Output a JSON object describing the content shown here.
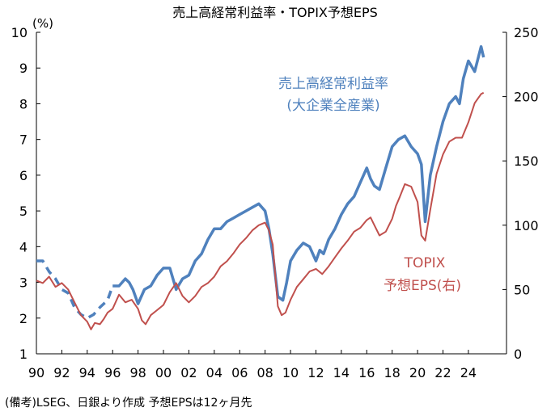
{
  "chart_data": {
    "type": "line",
    "title": "売上高経常利益率・TOPIX予想EPS",
    "left_axis": {
      "unit_label": "(%)",
      "ylim": [
        1,
        10
      ],
      "ticks": [
        "1",
        "2",
        "3",
        "4",
        "5",
        "6",
        "7",
        "8",
        "9",
        "10"
      ]
    },
    "right_axis": {
      "ylim": [
        0,
        250
      ],
      "ticks": [
        "0",
        "50",
        "100",
        "150",
        "200",
        "250"
      ]
    },
    "x_axis": {
      "xlim": [
        1990,
        2027
      ],
      "ticks": [
        "90",
        "92",
        "94",
        "96",
        "98",
        "00",
        "02",
        "04",
        "06",
        "08",
        "10",
        "12",
        "14",
        "16",
        "18",
        "20",
        "22",
        "24"
      ]
    },
    "series": [
      {
        "name": "売上高経常利益率(大企業全産業)",
        "label_line1": "売上高経常利益率",
        "label_line2": "(大企業全産業)",
        "axis": "left",
        "color": "#4F81BD",
        "dashed_before": 1996,
        "x": [
          1990,
          1990.5,
          1991,
          1991.5,
          1992,
          1992.5,
          1993,
          1993.5,
          1994,
          1994.5,
          1995,
          1995.3,
          1995.6,
          1996,
          1996.5,
          1997,
          1997.3,
          1997.6,
          1998,
          1998.5,
          1999,
          1999.5,
          2000,
          2000.5,
          2001,
          2001.5,
          2002,
          2002.5,
          2003,
          2003.5,
          2004,
          2004.5,
          2005,
          2005.5,
          2006,
          2006.5,
          2007,
          2007.5,
          2008,
          2008.3,
          2008.6,
          2009,
          2009.4,
          2009.7,
          2010,
          2010.5,
          2011,
          2011.5,
          2012,
          2012.3,
          2012.6,
          2013,
          2013.5,
          2014,
          2014.5,
          2015,
          2015.5,
          2016,
          2016.3,
          2016.6,
          2017,
          2017.5,
          2018,
          2018.5,
          2019,
          2019.5,
          2020,
          2020.3,
          2020.6,
          2021,
          2021.5,
          2022,
          2022.5,
          2023,
          2023.3,
          2023.6,
          2024,
          2024.5,
          2025,
          2025.2
        ],
        "y": [
          3.6,
          3.6,
          3.3,
          3.1,
          2.8,
          2.7,
          2.3,
          2.1,
          2.0,
          2.1,
          2.3,
          2.4,
          2.5,
          2.9,
          2.9,
          3.1,
          3.0,
          2.8,
          2.4,
          2.8,
          2.9,
          3.2,
          3.4,
          3.4,
          2.8,
          3.1,
          3.2,
          3.6,
          3.8,
          4.2,
          4.5,
          4.5,
          4.7,
          4.8,
          4.9,
          5.0,
          5.1,
          5.2,
          5.0,
          4.5,
          3.8,
          2.6,
          2.5,
          3.0,
          3.6,
          3.9,
          4.1,
          4.0,
          3.6,
          3.9,
          3.8,
          4.2,
          4.5,
          4.9,
          5.2,
          5.4,
          5.8,
          6.2,
          5.9,
          5.7,
          5.6,
          6.2,
          6.8,
          7.0,
          7.1,
          6.8,
          6.6,
          6.3,
          4.7,
          6.0,
          6.8,
          7.5,
          8.0,
          8.2,
          8.0,
          8.7,
          9.2,
          8.9,
          9.6,
          9.3
        ]
      },
      {
        "name": "TOPIX予想EPS(右)",
        "label_line1": "TOPIX",
        "label_line2": "予想EPS(右)",
        "axis": "right",
        "color": "#C0504D",
        "x": [
          1990,
          1990.5,
          1991,
          1991.5,
          1992,
          1992.5,
          1993,
          1993.5,
          1994,
          1994.3,
          1994.6,
          1995,
          1995.3,
          1995.6,
          1996,
          1996.5,
          1997,
          1997.5,
          1998,
          1998.3,
          1998.6,
          1999,
          1999.5,
          2000,
          2000.5,
          2001,
          2001.5,
          2002,
          2002.5,
          2003,
          2003.5,
          2004,
          2004.5,
          2005,
          2005.5,
          2006,
          2006.5,
          2007,
          2007.5,
          2008,
          2008.3,
          2008.6,
          2009,
          2009.3,
          2009.6,
          2010,
          2010.5,
          2011,
          2011.5,
          2012,
          2012.5,
          2013,
          2013.5,
          2014,
          2014.5,
          2015,
          2015.5,
          2016,
          2016.3,
          2016.6,
          2017,
          2017.5,
          2018,
          2018.3,
          2018.6,
          2019,
          2019.5,
          2020,
          2020.3,
          2020.6,
          2021,
          2021.5,
          2022,
          2022.5,
          2023,
          2023.5,
          2024,
          2024.5,
          2025,
          2025.2
        ],
        "y": [
          57,
          55,
          60,
          52,
          55,
          50,
          40,
          30,
          25,
          19,
          24,
          23,
          27,
          32,
          35,
          46,
          40,
          42,
          35,
          26,
          23,
          30,
          34,
          38,
          48,
          55,
          45,
          40,
          45,
          52,
          55,
          60,
          68,
          72,
          78,
          85,
          90,
          96,
          100,
          102,
          96,
          85,
          37,
          30,
          32,
          42,
          52,
          58,
          64,
          66,
          62,
          68,
          75,
          82,
          88,
          95,
          98,
          104,
          106,
          100,
          92,
          95,
          105,
          115,
          122,
          132,
          130,
          118,
          92,
          88,
          112,
          140,
          155,
          165,
          168,
          168,
          180,
          195,
          202,
          203
        ]
      }
    ]
  },
  "footnote": "(備考)LSEG、日銀より作成 予想EPSは12ヶ月先"
}
